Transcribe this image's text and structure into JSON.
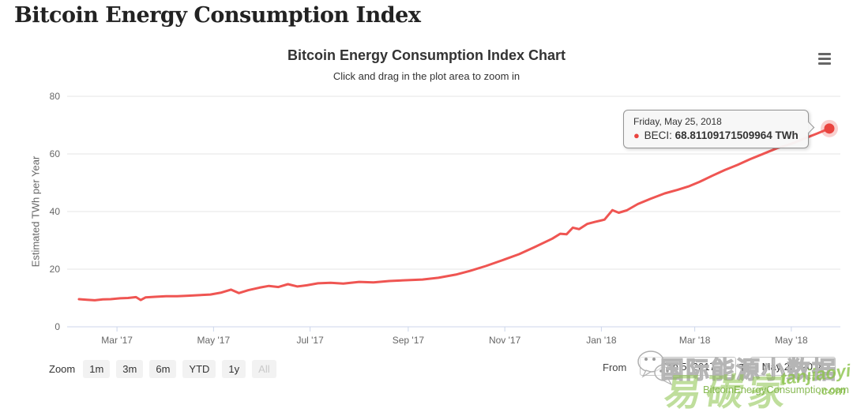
{
  "page": {
    "title": "Bitcoin Energy Consumption Index"
  },
  "chart": {
    "title": "Bitcoin Energy Consumption Index Chart",
    "subtitle": "Click and drag in the plot area to zoom in",
    "context_menu_icon": "hamburger-menu-icon"
  },
  "tooltip": {
    "date": "Friday, May 25, 2018",
    "series_label": "BECI:",
    "value": "68.81109171509964 TWh",
    "marker_color": "#e9443f"
  },
  "range_selector": {
    "zoom_label": "Zoom",
    "buttons": [
      {
        "label": "1m",
        "disabled": false
      },
      {
        "label": "3m",
        "disabled": false
      },
      {
        "label": "6m",
        "disabled": false
      },
      {
        "label": "YTD",
        "disabled": false
      },
      {
        "label": "1y",
        "disabled": false
      },
      {
        "label": "All",
        "disabled": true
      }
    ],
    "from_label": "From",
    "from_value": "Feb 5, 2017",
    "to_label": "To",
    "to_value": "May 25, 2018"
  },
  "watermark": {
    "cn_outline_text": "国际能源小数据",
    "cn_green_text": "易碳家",
    "latin_italic_text": "tanjiaoyi",
    "latin_dotcom_text": ".com",
    "url_text": "BitcoinEnergyConsumption.com",
    "icon": "wechat-icon",
    "green_color": "#8bc34a"
  },
  "chart_data": {
    "type": "line",
    "title": "Bitcoin Energy Consumption Index Chart",
    "subtitle": "Click and drag in the plot area to zoom in",
    "xlabel": "",
    "ylabel": "Estimated TWh per Year",
    "ylim": [
      0,
      80
    ],
    "yticks": [
      0,
      20,
      40,
      60,
      80
    ],
    "grid": true,
    "legend": false,
    "line_color": "#ef5552",
    "marker_color": "#e9443f",
    "xticks": [
      {
        "label": "Mar '17",
        "date": "2017-03-01"
      },
      {
        "label": "May '17",
        "date": "2017-05-01"
      },
      {
        "label": "Jul '17",
        "date": "2017-07-01"
      },
      {
        "label": "Sep '17",
        "date": "2017-09-01"
      },
      {
        "label": "Nov '17",
        "date": "2017-11-01"
      },
      {
        "label": "Jan '18",
        "date": "2018-01-01"
      },
      {
        "label": "Mar '18",
        "date": "2018-03-01"
      },
      {
        "label": "May '18",
        "date": "2018-05-01"
      }
    ],
    "series": [
      {
        "name": "BECI",
        "unit": "TWh",
        "points": [
          [
            "2017-02-05",
            9.6
          ],
          [
            "2017-02-10",
            9.4
          ],
          [
            "2017-02-15",
            9.2
          ],
          [
            "2017-02-20",
            9.5
          ],
          [
            "2017-02-25",
            9.6
          ],
          [
            "2017-03-03",
            9.9
          ],
          [
            "2017-03-08",
            10.0
          ],
          [
            "2017-03-13",
            10.3
          ],
          [
            "2017-03-16",
            9.3
          ],
          [
            "2017-03-19",
            10.2
          ],
          [
            "2017-03-25",
            10.4
          ],
          [
            "2017-04-01",
            10.6
          ],
          [
            "2017-04-08",
            10.6
          ],
          [
            "2017-04-15",
            10.8
          ],
          [
            "2017-04-22",
            11.0
          ],
          [
            "2017-04-29",
            11.2
          ],
          [
            "2017-05-06",
            11.9
          ],
          [
            "2017-05-12",
            12.9
          ],
          [
            "2017-05-17",
            11.7
          ],
          [
            "2017-05-23",
            12.7
          ],
          [
            "2017-05-30",
            13.6
          ],
          [
            "2017-06-05",
            14.2
          ],
          [
            "2017-06-11",
            13.8
          ],
          [
            "2017-06-17",
            14.8
          ],
          [
            "2017-06-23",
            14.0
          ],
          [
            "2017-06-29",
            14.4
          ],
          [
            "2017-07-06",
            15.1
          ],
          [
            "2017-07-14",
            15.3
          ],
          [
            "2017-07-22",
            15.0
          ],
          [
            "2017-08-01",
            15.6
          ],
          [
            "2017-08-10",
            15.4
          ],
          [
            "2017-08-20",
            15.9
          ],
          [
            "2017-09-01",
            16.2
          ],
          [
            "2017-09-10",
            16.4
          ],
          [
            "2017-09-20",
            17.0
          ],
          [
            "2017-10-01",
            18.1
          ],
          [
            "2017-10-10",
            19.4
          ],
          [
            "2017-10-20",
            21.1
          ],
          [
            "2017-11-01",
            23.4
          ],
          [
            "2017-11-10",
            25.2
          ],
          [
            "2017-11-20",
            27.7
          ],
          [
            "2017-12-01",
            30.6
          ],
          [
            "2017-12-06",
            32.3
          ],
          [
            "2017-12-10",
            32.1
          ],
          [
            "2017-12-14",
            34.4
          ],
          [
            "2017-12-18",
            33.9
          ],
          [
            "2017-12-23",
            35.7
          ],
          [
            "2017-12-28",
            36.4
          ],
          [
            "2018-01-03",
            37.2
          ],
          [
            "2018-01-08",
            40.5
          ],
          [
            "2018-01-12",
            39.6
          ],
          [
            "2018-01-17",
            40.4
          ],
          [
            "2018-01-24",
            42.6
          ],
          [
            "2018-02-01",
            44.4
          ],
          [
            "2018-02-10",
            46.3
          ],
          [
            "2018-02-18",
            47.5
          ],
          [
            "2018-02-25",
            48.7
          ],
          [
            "2018-03-04",
            50.3
          ],
          [
            "2018-03-12",
            52.4
          ],
          [
            "2018-03-20",
            54.4
          ],
          [
            "2018-03-28",
            56.2
          ],
          [
            "2018-04-05",
            58.2
          ],
          [
            "2018-04-14",
            60.2
          ],
          [
            "2018-04-22",
            62.0
          ],
          [
            "2018-05-01",
            63.5
          ],
          [
            "2018-05-09",
            65.3
          ],
          [
            "2018-05-17",
            67.0
          ],
          [
            "2018-05-25",
            68.81109171509964
          ]
        ]
      }
    ],
    "last_point": {
      "date": "Friday, May 25, 2018",
      "value": 68.81109171509964
    }
  }
}
